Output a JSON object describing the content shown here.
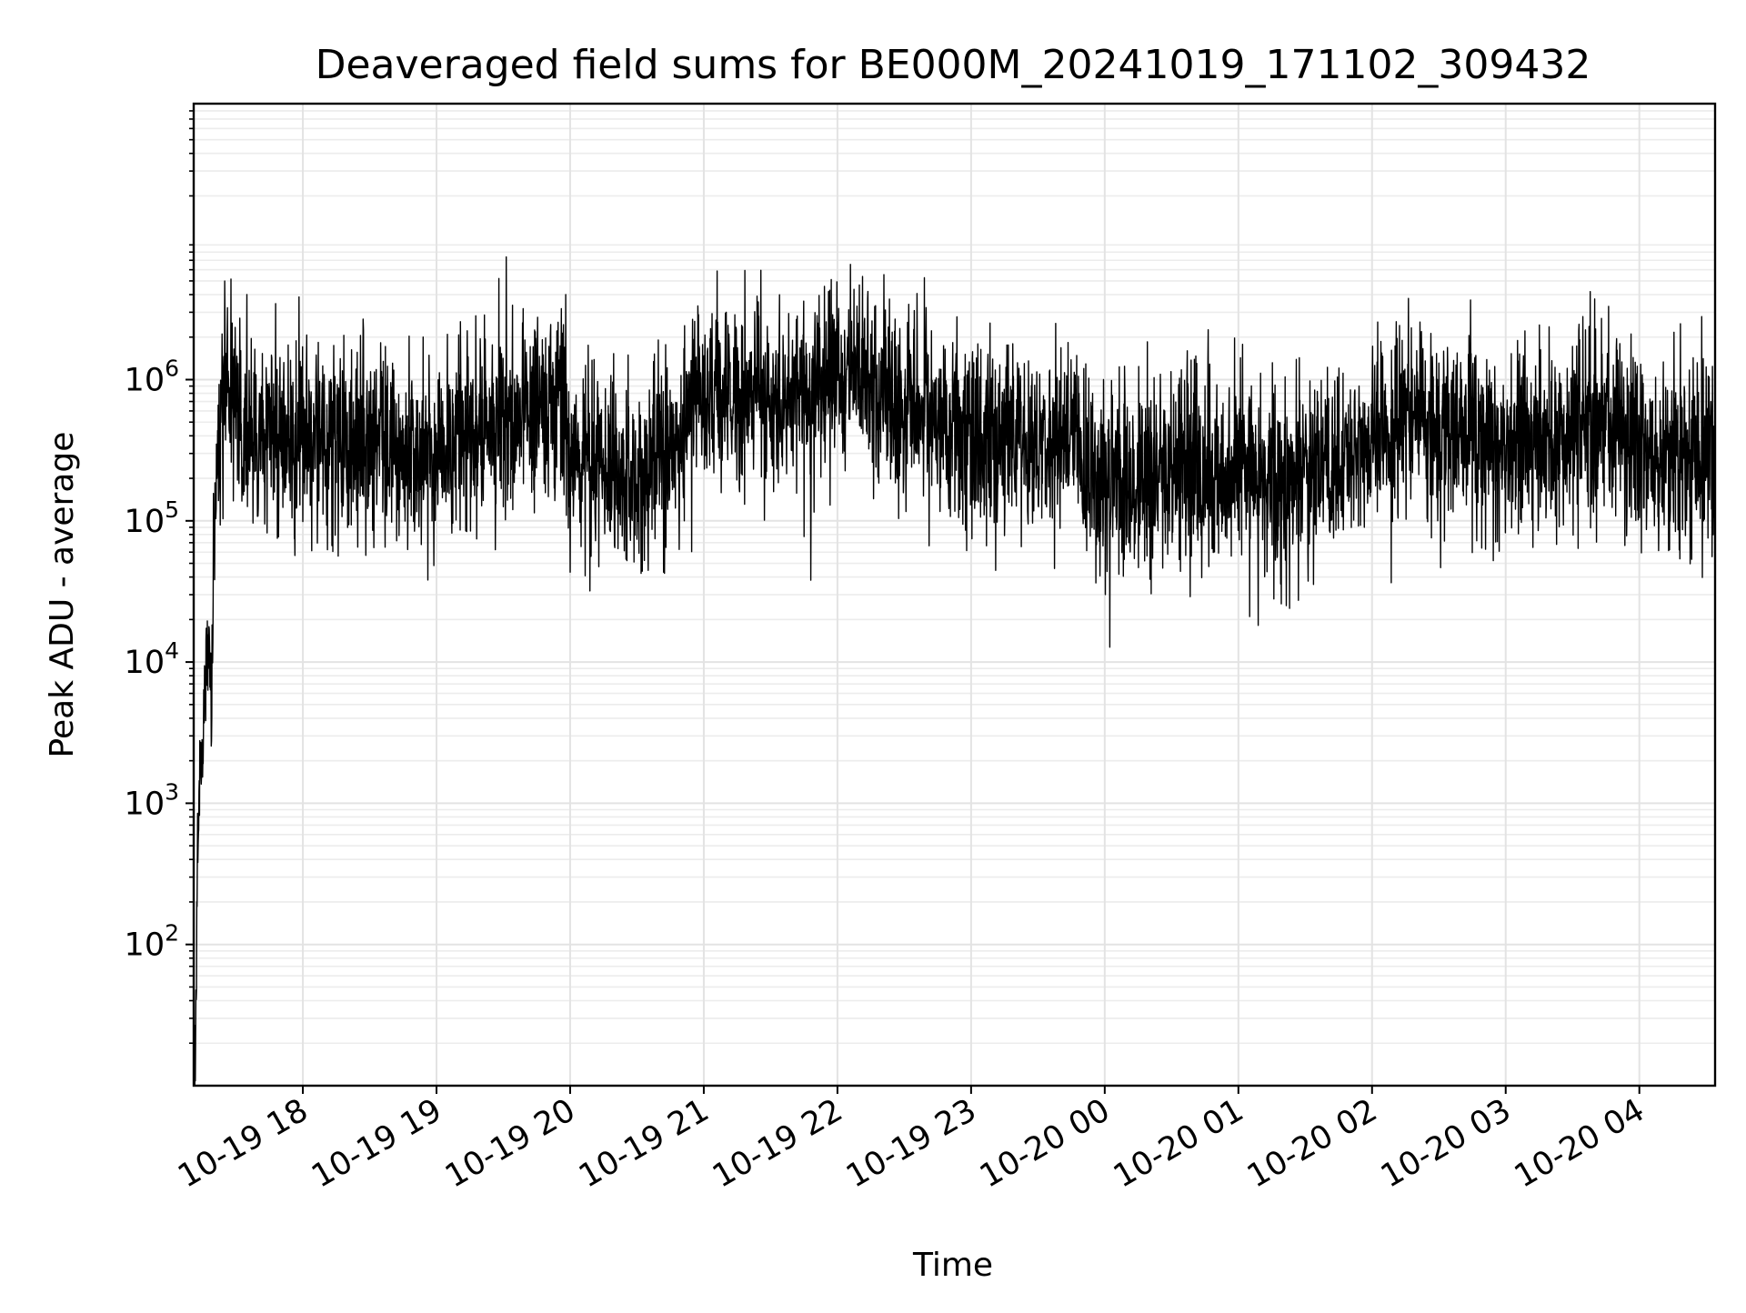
{
  "chart_data": {
    "type": "line",
    "title": "Deaveraged field sums for BE000M_20241019_171102_309432",
    "xlabel": "Time",
    "ylabel": "Peak ADU - average",
    "yscale": "log",
    "ylim": [
      10,
      90000000
    ],
    "xlim": [
      "2024-10-19 17:11",
      "2024-10-20 04:34"
    ],
    "grid": true,
    "line_color": "#000000",
    "x_ticks": [
      {
        "value": "2024-10-19 18:00",
        "label": "10-19 18"
      },
      {
        "value": "2024-10-19 19:00",
        "label": "10-19 19"
      },
      {
        "value": "2024-10-19 20:00",
        "label": "10-19 20"
      },
      {
        "value": "2024-10-19 21:00",
        "label": "10-19 21"
      },
      {
        "value": "2024-10-19 22:00",
        "label": "10-19 22"
      },
      {
        "value": "2024-10-19 23:00",
        "label": "10-19 23"
      },
      {
        "value": "2024-10-20 00:00",
        "label": "10-20 00"
      },
      {
        "value": "2024-10-20 01:00",
        "label": "10-20 01"
      },
      {
        "value": "2024-10-20 02:00",
        "label": "10-20 02"
      },
      {
        "value": "2024-10-20 03:00",
        "label": "10-20 03"
      },
      {
        "value": "2024-10-20 04:00",
        "label": "10-20 04"
      }
    ],
    "y_ticks": [
      {
        "value": 100,
        "base": "10",
        "exp": "2"
      },
      {
        "value": 1000,
        "base": "10",
        "exp": "3"
      },
      {
        "value": 10000,
        "base": "10",
        "exp": "4"
      },
      {
        "value": 100000,
        "base": "10",
        "exp": "5"
      },
      {
        "value": 1000000,
        "base": "10",
        "exp": "6"
      }
    ],
    "series": [
      {
        "x": [
          "2024-10-19 17:11",
          "2024-10-19 17:12",
          "2024-10-19 17:13",
          "2024-10-19 17:14",
          "2024-10-19 17:15",
          "2024-10-19 17:16",
          "2024-10-19 17:17",
          "2024-10-19 17:18",
          "2024-10-19 17:19",
          "2024-10-19 17:20",
          "2024-10-19 17:22",
          "2024-10-19 17:24",
          "2024-10-19 17:26",
          "2024-10-19 17:28",
          "2024-10-19 17:30",
          "2024-10-19 17:35",
          "2024-10-19 17:40",
          "2024-10-19 17:45",
          "2024-10-19 17:50",
          "2024-10-19 17:55",
          "2024-10-19 18:00",
          "2024-10-19 18:10",
          "2024-10-19 18:20",
          "2024-10-19 18:30",
          "2024-10-19 18:40",
          "2024-10-19 18:50",
          "2024-10-19 19:00",
          "2024-10-19 19:15",
          "2024-10-19 19:30",
          "2024-10-19 19:45",
          "2024-10-19 19:55",
          "2024-10-19 20:00",
          "2024-10-19 20:15",
          "2024-10-19 20:30",
          "2024-10-19 20:45",
          "2024-10-19 21:00",
          "2024-10-19 21:15",
          "2024-10-19 21:30",
          "2024-10-19 21:45",
          "2024-10-19 22:00",
          "2024-10-19 22:15",
          "2024-10-19 22:30",
          "2024-10-19 22:45",
          "2024-10-19 23:00",
          "2024-10-19 23:15",
          "2024-10-19 23:30",
          "2024-10-19 23:45",
          "2024-10-20 00:00",
          "2024-10-20 00:15",
          "2024-10-20 00:30",
          "2024-10-20 00:45",
          "2024-10-20 01:00",
          "2024-10-20 01:15",
          "2024-10-20 01:30",
          "2024-10-20 01:45",
          "2024-10-20 02:00",
          "2024-10-20 02:15",
          "2024-10-20 02:30",
          "2024-10-20 02:45",
          "2024-10-20 03:00",
          "2024-10-20 03:15",
          "2024-10-20 03:30",
          "2024-10-20 03:45",
          "2024-10-20 04:00",
          "2024-10-20 04:15",
          "2024-10-20 04:30",
          "2024-10-20 04:34"
        ],
        "y": [
          12,
          20,
          900,
          3000,
          1600,
          7000,
          12000,
          16000,
          2800,
          100000,
          400000,
          900000,
          1100000,
          800000,
          600000,
          450000,
          350000,
          500000,
          420000,
          380000,
          400000,
          350000,
          300000,
          420000,
          360000,
          250000,
          280000,
          450000,
          500000,
          600000,
          700000,
          300000,
          250000,
          200000,
          300000,
          900000,
          800000,
          600000,
          700000,
          1000000,
          900000,
          600000,
          500000,
          400000,
          450000,
          350000,
          500000,
          150000,
          200000,
          250000,
          200000,
          300000,
          150000,
          200000,
          250000,
          350000,
          500000,
          400000,
          450000,
          300000,
          350000,
          400000,
          500000,
          350000,
          300000,
          400000,
          350000
        ],
        "spikes_high": [
          {
            "x": "2024-10-19 19:28",
            "y": 5200000
          },
          {
            "x": "2024-10-19 19:58",
            "y": 4000000
          },
          {
            "x": "2024-10-19 21:56",
            "y": 4200000
          },
          {
            "x": "2024-10-20 03:38",
            "y": 4200000
          }
        ],
        "spikes_low": [
          {
            "x": "2024-10-19 21:48",
            "y": 38000
          },
          {
            "x": "2024-10-20 01:05",
            "y": 21000
          },
          {
            "x": "2024-10-20 01:23",
            "y": 24000
          }
        ]
      }
    ]
  }
}
